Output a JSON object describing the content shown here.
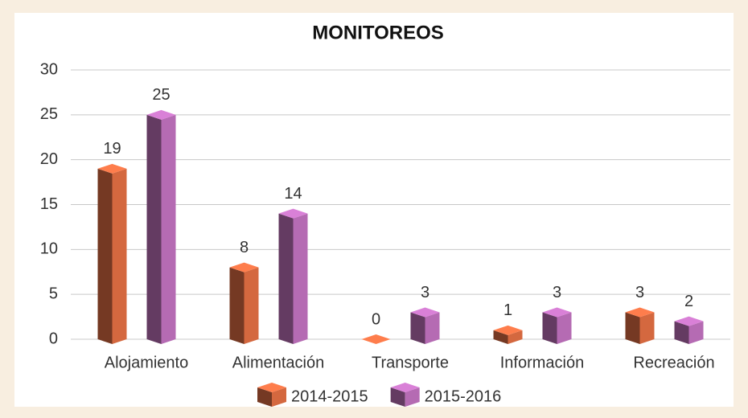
{
  "chart_data": {
    "type": "bar3d",
    "title": "MONITOREOS",
    "categories": [
      "Alojamiento",
      "Alimentación",
      "Transporte",
      "Información",
      "Recreación"
    ],
    "series": [
      {
        "name": "2014-2015",
        "color": "#d4683f",
        "values": [
          19,
          8,
          0,
          1,
          3
        ]
      },
      {
        "name": "2015-2016",
        "color": "#b56bb3",
        "values": [
          25,
          14,
          3,
          3,
          2
        ]
      }
    ],
    "ylim": [
      0,
      30
    ],
    "yticks": [
      0,
      5,
      10,
      15,
      20,
      25,
      30
    ],
    "grid": true,
    "legend": "bottom"
  }
}
